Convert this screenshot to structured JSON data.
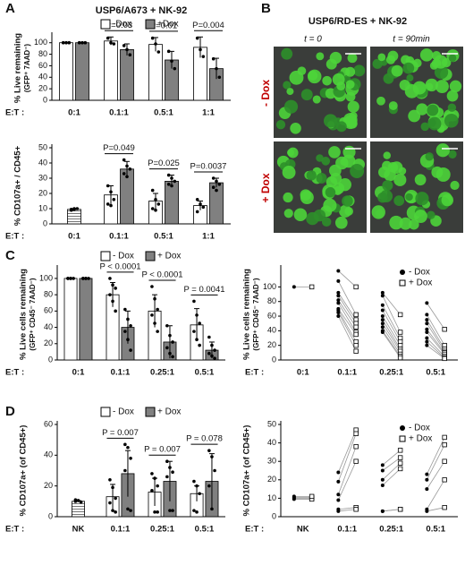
{
  "panels": [
    "A",
    "B",
    "C",
    "D"
  ],
  "image_panel": {
    "title": "USP6/RD-ES + NK-92",
    "columns": [
      "t = 0",
      "t = 90min"
    ],
    "rows": [
      "- Dox",
      "+ Dox"
    ]
  },
  "chart_data": [
    {
      "type": "bar",
      "title": "USP6/A673 + NK-92",
      "ylabel": "% Live remaining",
      "ylabel_sub": "(GFP⁺ 7AAD⁻)",
      "xlabel": "E:T :",
      "categories": [
        "0:1",
        "0.1:1",
        "0.5:1",
        "1:1"
      ],
      "ylim": [
        0,
        112
      ],
      "yticks": [
        0,
        20,
        40,
        60,
        80,
        100
      ],
      "legend": "top",
      "series": [
        {
          "name": "-Dox",
          "color": "#ffffff",
          "values": [
            100,
            103,
            97,
            92
          ],
          "errors": [
            0,
            7,
            12,
            18
          ],
          "points": [
            [
              100,
              100,
              100
            ],
            [
              108,
              100,
              98
            ],
            [
              108,
              98,
              84
            ],
            [
              108,
              88,
              76
            ]
          ]
        },
        {
          "name": "+Dox",
          "color": "#808080",
          "values": [
            100,
            88,
            70,
            55
          ],
          "errors": [
            0,
            10,
            15,
            18
          ],
          "points": [
            [
              100,
              100,
              100
            ],
            [
              95,
              88,
              79
            ],
            [
              85,
              68,
              55
            ],
            [
              72,
              55,
              40
            ]
          ]
        }
      ],
      "annotations": [
        {
          "category": 1,
          "label": "P=0.03"
        },
        {
          "category": 2,
          "label": "P=0.01"
        },
        {
          "category": 3,
          "label": "P=0.004"
        }
      ]
    },
    {
      "type": "bar",
      "ylabel": "% CD107a+ / CD45+",
      "xlabel": "E:T :",
      "categories": [
        "0:1",
        "0.1:1",
        "0.5:1",
        "1:1"
      ],
      "ylim": [
        0,
        50
      ],
      "yticks": [
        0,
        10,
        20,
        30,
        40,
        50
      ],
      "series": [
        {
          "name": "-Dox",
          "color": "#ffffff",
          "values": [
            9.5,
            19,
            15,
            12
          ],
          "errors": [
            0.5,
            6,
            5,
            3
          ],
          "points": [
            [
              9,
              9.5,
              10,
              9.5,
              10
            ],
            [
              25,
              21,
              16,
              13,
              12
            ],
            [
              22,
              16,
              13,
              10,
              9
            ],
            [
              16,
              13,
              11,
              8
            ]
          ]
        },
        {
          "name": "+Dox",
          "color": "#808080",
          "values": [
            null,
            36,
            28,
            27
          ],
          "errors": [
            null,
            5,
            4,
            3
          ],
          "points": [
            [],
            [
              42,
              38,
              36,
              33,
              31
            ],
            [
              32,
              30,
              28,
              26,
              25
            ],
            [
              30,
              28,
              26,
              24,
              22
            ]
          ]
        }
      ],
      "annotations": [
        {
          "category": 1,
          "label": "P=0.049"
        },
        {
          "category": 2,
          "label": "P=0.025"
        },
        {
          "category": 3,
          "label": "P=0.0037"
        }
      ]
    },
    {
      "type": "bar",
      "ylabel": "% Live cells remaining",
      "ylabel_sub": "(GFP⁺ CD45⁻ 7AAD⁻)",
      "xlabel": "E:T :",
      "categories": [
        "0:1",
        "0.1:1",
        "0.25:1",
        "0.5:1"
      ],
      "ylim": [
        0,
        112
      ],
      "yticks": [
        0,
        20,
        40,
        60,
        80,
        100
      ],
      "legend": "top",
      "series": [
        {
          "name": "- Dox",
          "color": "#ffffff",
          "values": [
            100,
            80,
            60,
            43
          ],
          "errors": [
            0,
            15,
            20,
            20
          ],
          "points": [
            [
              100,
              100,
              100,
              100,
              100
            ],
            [
              100,
              92,
              88,
              80,
              72,
              60
            ],
            [
              90,
              75,
              62,
              55,
              45,
              35
            ],
            [
              72,
              55,
              45,
              35,
              25,
              18
            ]
          ]
        },
        {
          "name": "+ Dox",
          "color": "#808080",
          "values": [
            100,
            40,
            22,
            12
          ],
          "errors": [
            0,
            20,
            20,
            10
          ],
          "points": [
            [
              100,
              100,
              100,
              100,
              100
            ],
            [
              62,
              50,
              42,
              35,
              25,
              12
            ],
            [
              42,
              30,
              22,
              15,
              8,
              4
            ],
            [
              28,
              18,
              12,
              8,
              5,
              2
            ]
          ]
        }
      ],
      "annotations": [
        {
          "category": 1,
          "label": "P < 0.0001"
        },
        {
          "category": 2,
          "label": "P < 0.0001"
        },
        {
          "category": 3,
          "label": "P = 0.0041"
        }
      ]
    },
    {
      "type": "paired",
      "ylabel": "% Live cells remaining",
      "ylabel_sub": "(GFP⁺ CD45⁻ 7AAD⁻)",
      "xlabel": "E:T :",
      "categories": [
        "0:1",
        "0.1:1",
        "0.25:1",
        "0.5:1"
      ],
      "ylim": [
        0,
        125
      ],
      "yticks": [
        0,
        20,
        40,
        60,
        80,
        100
      ],
      "legend": "top-right",
      "series": [
        {
          "name": "- Dox",
          "marker": "circle",
          "points": [
            [
              100
            ],
            [
              122,
              108,
              92,
              88,
              82,
              78,
              70,
              68,
              65,
              60
            ],
            [
              92,
              88,
              75,
              68,
              60,
              55,
              50,
              45,
              40,
              38
            ],
            [
              78,
              62,
              55,
              50,
              42,
              38,
              30,
              25,
              20
            ]
          ]
        },
        {
          "name": "+ Dox",
          "marker": "square",
          "points": [
            [
              100
            ],
            [
              100,
              62,
              55,
              50,
              45,
              38,
              35,
              25,
              20,
              12
            ],
            [
              62,
              38,
              30,
              25,
              20,
              15,
              12,
              8,
              5,
              3
            ],
            [
              42,
              20,
              15,
              12,
              10,
              8,
              5,
              3,
              2
            ]
          ]
        }
      ]
    },
    {
      "type": "bar",
      "ylabel": "% CD107a+ (of CD45+)",
      "xlabel": "E:T :",
      "categories": [
        "NK",
        "0.1:1",
        "0.25:1",
        "0.5:1"
      ],
      "ylim": [
        0,
        60
      ],
      "yticks": [
        0,
        20,
        40,
        60
      ],
      "legend": "top",
      "series": [
        {
          "name": "- Dox",
          "color": "#ffffff",
          "values": [
            10,
            13,
            16,
            15
          ],
          "errors": [
            0.5,
            8,
            9,
            5
          ],
          "points": [
            [
              10,
              10.5,
              9.5,
              11
            ],
            [
              24,
              19,
              12,
              9,
              4,
              3
            ],
            [
              28,
              25,
              20,
              17,
              3,
              3
            ],
            [
              23,
              20,
              15,
              4,
              3
            ]
          ]
        },
        {
          "name": "+ Dox",
          "color": "#808080",
          "values": [
            null,
            28,
            23,
            23
          ],
          "errors": [
            null,
            15,
            13,
            18
          ],
          "points": [
            [],
            [
              47,
              45,
              38,
              30,
              5,
              4
            ],
            [
              36,
              32,
              29,
              26,
              4,
              4
            ],
            [
              43,
              39,
              30,
              20,
              5
            ]
          ]
        }
      ],
      "annotations": [
        {
          "category": 1,
          "label": "P = 0.007"
        },
        {
          "category": 2,
          "label": "P = 0.007"
        },
        {
          "category": 3,
          "label": "P = 0.078"
        }
      ]
    },
    {
      "type": "paired",
      "ylabel": "% CD107a+ (of CD45+)",
      "xlabel": "E:T :",
      "categories": [
        "NK",
        "0.1:1",
        "0.25:1",
        "0.5:1"
      ],
      "ylim": [
        0,
        50
      ],
      "yticks": [
        0,
        10,
        20,
        30,
        40,
        50
      ],
      "legend": "top-right",
      "series": [
        {
          "name": "- Dox",
          "marker": "circle",
          "points": [
            [
              10,
              10.5,
              9.5,
              11
            ],
            [
              24,
              19,
              12,
              9,
              4,
              3
            ],
            [
              28,
              25,
              20,
              17,
              3,
              3
            ],
            [
              23,
              20,
              15,
              4,
              3
            ]
          ]
        },
        {
          "name": "+ Dox",
          "marker": "square",
          "points": [
            [
              10,
              10.5,
              9.5,
              11
            ],
            [
              47,
              45,
              38,
              30,
              5,
              4
            ],
            [
              36,
              32,
              29,
              26,
              4,
              4
            ],
            [
              43,
              39,
              30,
              20,
              5
            ]
          ]
        }
      ]
    }
  ]
}
